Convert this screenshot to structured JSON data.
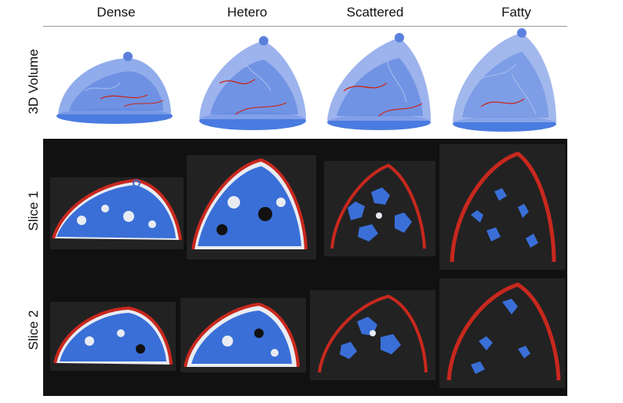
{
  "columns": [
    "Dense",
    "Hetero",
    "Scattered",
    "Fatty"
  ],
  "rows": [
    "3D Volume",
    "Slice 1",
    "Slice 2"
  ],
  "colors": {
    "tissue_blue": "#3a6fd8",
    "vessel_red": "#c8281e",
    "fat_white": "#e8ecf2",
    "panel_dark": "#111111",
    "cell_dark": "#222222"
  }
}
